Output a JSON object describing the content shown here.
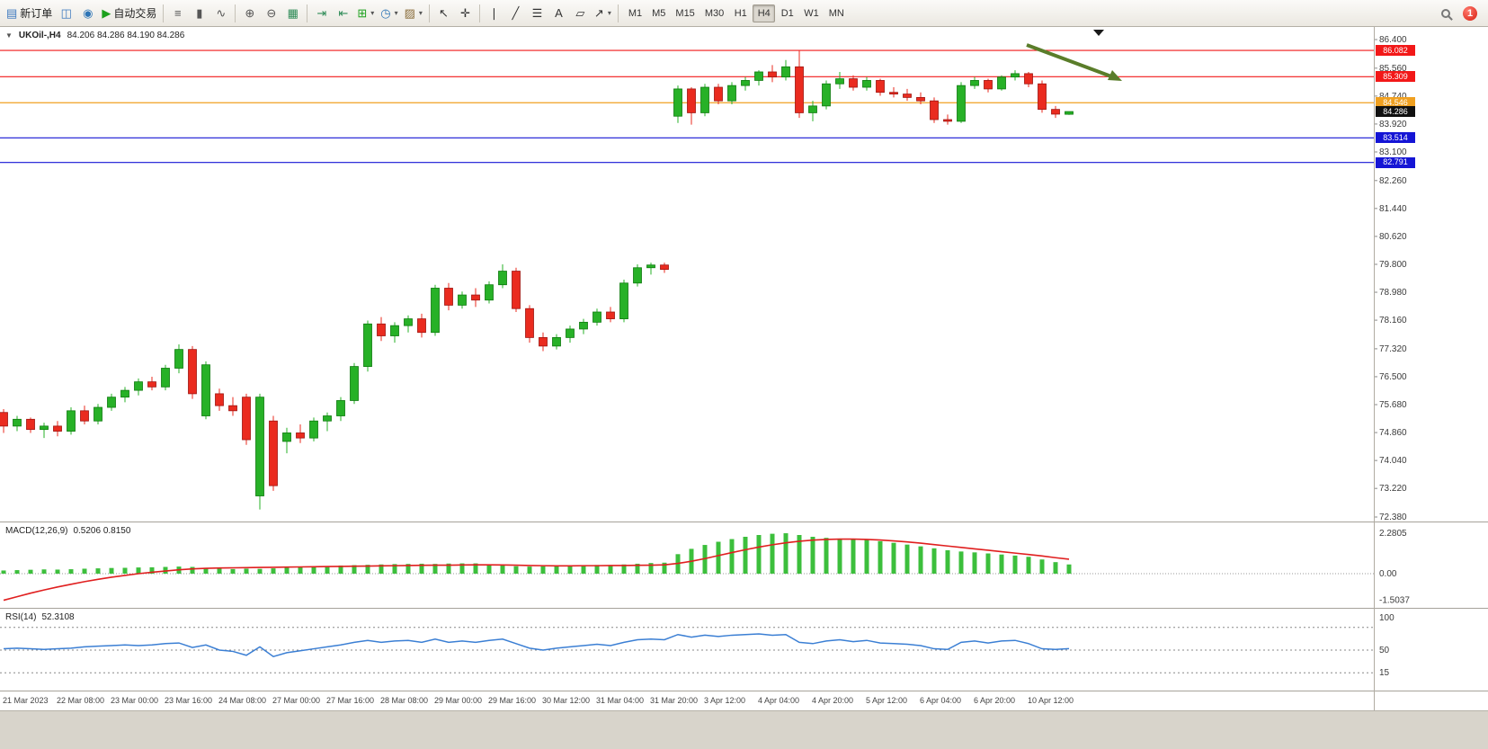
{
  "toolbar": {
    "badge": "1",
    "dropdown_icon": "▾",
    "items": [
      {
        "name": "new-order",
        "icon": "▤",
        "icon_color": "#3c78be",
        "label": "新订单"
      },
      {
        "name": "chart-window",
        "icon": "◫",
        "icon_color": "#3c78be"
      },
      {
        "name": "profiles",
        "icon": "◉",
        "icon_color": "#2e75b6"
      },
      {
        "name": "autotrading",
        "icon": "▶",
        "icon_color": "#1ca01c",
        "label": "自动交易"
      },
      {
        "type": "sep"
      },
      {
        "name": "bar-chart-type",
        "icon": "≡",
        "icon_color": "#555555"
      },
      {
        "name": "candlestick-type",
        "icon": "▮",
        "icon_color": "#555555"
      },
      {
        "name": "line-chart-type",
        "icon": "∿",
        "icon_color": "#555555"
      },
      {
        "type": "sep"
      },
      {
        "name": "zoom-in",
        "icon": "⊕",
        "icon_color": "#555555"
      },
      {
        "name": "zoom-out",
        "icon": "⊖",
        "icon_color": "#555555"
      },
      {
        "name": "tile-windows",
        "icon": "▦",
        "icon_color": "#2e8b57"
      },
      {
        "type": "sep"
      },
      {
        "name": "auto-scroll",
        "icon": "⇥",
        "icon_color": "#2e8b57"
      },
      {
        "name": "chart-shift",
        "icon": "⇤",
        "icon_color": "#2e8b57"
      },
      {
        "name": "indicators",
        "icon": "⊞",
        "icon_color": "#1ca01c",
        "dropdown": true
      },
      {
        "name": "periods",
        "icon": "◷",
        "icon_color": "#2e75b6",
        "dropdown": true
      },
      {
        "name": "templates",
        "icon": "▨",
        "icon_color": "#8a6d3b",
        "dropdown": true
      },
      {
        "type": "sep"
      },
      {
        "name": "cursor",
        "icon": "↖",
        "icon_color": "#333333"
      },
      {
        "name": "crosshair",
        "icon": "✛",
        "icon_color": "#333333"
      },
      {
        "type": "sep"
      },
      {
        "name": "vertical-line",
        "icon": "❘",
        "icon_color": "#333333"
      },
      {
        "name": "trendline",
        "icon": "╱",
        "icon_color": "#333333"
      },
      {
        "name": "fibonacci",
        "icon": "☰",
        "icon_color": "#333333"
      },
      {
        "name": "text-label",
        "icon": "A",
        "icon_color": "#333333"
      },
      {
        "name": "shapes",
        "icon": "▱",
        "icon_color": "#333333"
      },
      {
        "name": "arrows",
        "icon": "↗",
        "icon_color": "#333333",
        "dropdown": true
      },
      {
        "type": "sep"
      }
    ],
    "timeframes": {
      "items": [
        "M1",
        "M5",
        "M15",
        "M30",
        "H1",
        "H4",
        "D1",
        "W1",
        "MN"
      ],
      "active": "H4"
    }
  },
  "chart": {
    "collapse_icon": "▼",
    "symbol_label": "UKOil-,H4",
    "ohlc_label": "84.206 84.286 84.190 84.286",
    "colors": {
      "up": "#27b127",
      "up_border": "#0e7a0e",
      "down": "#ea2b1f",
      "down_border": "#9e1410",
      "macd_bar": "#3cbf3c",
      "macd_signal": "#e01f1f",
      "rsi_line": "#3b7fd4"
    },
    "price_axis": {
      "labels": [
        "86.400",
        "85.560",
        "84.740",
        "83.920",
        "83.100",
        "82.260",
        "81.440",
        "80.620",
        "79.800",
        "78.980",
        "78.160",
        "77.320",
        "76.500",
        "75.680",
        "74.860",
        "74.040",
        "73.220",
        "72.380"
      ]
    },
    "hlines": [
      {
        "value": 86.082,
        "color": "#f21818"
      },
      {
        "value": 85.309,
        "color": "#f21818"
      },
      {
        "value": 84.546,
        "color": "#f0a020"
      },
      {
        "value": 83.514,
        "color": "#1515d5"
      },
      {
        "value": 82.791,
        "color": "#1515d5"
      }
    ],
    "price_tags": [
      {
        "text": "86.082",
        "value": 86.082,
        "color": "#f21818"
      },
      {
        "text": "85.309",
        "value": 85.309,
        "color": "#f21818"
      },
      {
        "text": "84.546",
        "value": 84.546,
        "color": "#f0a020"
      },
      {
        "text": "84.286",
        "value": 84.286,
        "color": "#101010"
      },
      {
        "text": "83.514",
        "value": 83.514,
        "color": "#1515d5"
      },
      {
        "text": "82.791",
        "value": 82.791,
        "color": "#1515d5"
      }
    ],
    "arrow": {
      "color": "#5a7d2a"
    },
    "time_axis": [
      "21 Mar 2023",
      "22 Mar 08:00",
      "23 Mar 00:00",
      "23 Mar 16:00",
      "24 Mar 08:00",
      "27 Mar 00:00",
      "27 Mar 16:00",
      "28 Mar 08:00",
      "29 Mar 00:00",
      "29 Mar 16:00",
      "30 Mar 12:00",
      "31 Mar 04:00",
      "31 Mar 20:00",
      "3 Apr 12:00",
      "4 Apr 04:00",
      "4 Apr 20:00",
      "5 Apr 12:00",
      "6 Apr 04:00",
      "6 Apr 20:00",
      "10 Apr 12:00"
    ]
  },
  "chart_data": [
    {
      "type": "candlestick",
      "symbol": "UKOil-",
      "timeframe": "H4",
      "ohlc_current": {
        "open": 84.206,
        "high": 84.286,
        "low": 84.19,
        "close": 84.286
      },
      "ylim": [
        72.38,
        86.4
      ],
      "candles": [
        [
          75.45,
          75.55,
          74.85,
          75.05
        ],
        [
          75.05,
          75.35,
          74.9,
          75.25
        ],
        [
          75.25,
          75.3,
          74.85,
          74.95
        ],
        [
          74.95,
          75.15,
          74.7,
          75.05
        ],
        [
          75.05,
          75.2,
          74.75,
          74.9
        ],
        [
          74.9,
          75.6,
          74.8,
          75.5
        ],
        [
          75.5,
          75.65,
          75.1,
          75.2
        ],
        [
          75.2,
          75.7,
          75.1,
          75.6
        ],
        [
          75.6,
          76.0,
          75.5,
          75.9
        ],
        [
          75.9,
          76.2,
          75.75,
          76.1
        ],
        [
          76.1,
          76.45,
          75.95,
          76.35
        ],
        [
          76.35,
          76.5,
          76.1,
          76.2
        ],
        [
          76.2,
          76.85,
          76.1,
          76.75
        ],
        [
          76.75,
          77.45,
          76.6,
          77.3
        ],
        [
          77.3,
          77.4,
          75.85,
          76.0
        ],
        [
          75.35,
          76.95,
          75.25,
          76.85
        ],
        [
          76.0,
          76.15,
          75.5,
          75.65
        ],
        [
          75.65,
          75.9,
          75.35,
          75.5
        ],
        [
          75.9,
          76.0,
          74.5,
          74.65
        ],
        [
          73.0,
          76.0,
          72.6,
          75.9
        ],
        [
          75.2,
          75.35,
          73.15,
          73.3
        ],
        [
          74.6,
          75.0,
          74.25,
          74.85
        ],
        [
          74.85,
          75.1,
          74.55,
          74.7
        ],
        [
          74.7,
          75.3,
          74.6,
          75.2
        ],
        [
          75.2,
          75.45,
          74.9,
          75.35
        ],
        [
          75.35,
          75.9,
          75.2,
          75.8
        ],
        [
          75.8,
          76.9,
          75.7,
          76.8
        ],
        [
          76.8,
          78.15,
          76.65,
          78.05
        ],
        [
          78.05,
          78.25,
          77.55,
          77.7
        ],
        [
          77.7,
          78.1,
          77.5,
          78.0
        ],
        [
          78.0,
          78.3,
          77.8,
          78.2
        ],
        [
          78.2,
          78.35,
          77.65,
          77.8
        ],
        [
          77.8,
          79.2,
          77.7,
          79.1
        ],
        [
          79.1,
          79.25,
          78.45,
          78.6
        ],
        [
          78.6,
          79.0,
          78.5,
          78.9
        ],
        [
          78.9,
          79.1,
          78.55,
          78.75
        ],
        [
          78.75,
          79.3,
          78.65,
          79.2
        ],
        [
          79.2,
          79.8,
          79.1,
          79.6
        ],
        [
          79.6,
          79.7,
          78.4,
          78.5
        ],
        [
          78.5,
          78.6,
          77.5,
          77.65
        ],
        [
          77.65,
          77.8,
          77.25,
          77.4
        ],
        [
          77.4,
          77.75,
          77.3,
          77.65
        ],
        [
          77.65,
          78.0,
          77.5,
          77.9
        ],
        [
          77.9,
          78.2,
          77.75,
          78.1
        ],
        [
          78.1,
          78.5,
          78.0,
          78.4
        ],
        [
          78.4,
          78.55,
          78.1,
          78.2
        ],
        [
          78.2,
          79.35,
          78.1,
          79.25
        ],
        [
          79.25,
          79.8,
          79.15,
          79.7
        ],
        [
          79.7,
          79.85,
          79.5,
          79.78
        ],
        [
          79.78,
          79.85,
          79.55,
          79.65
        ],
        [
          84.15,
          85.05,
          83.95,
          84.95
        ],
        [
          84.95,
          85.0,
          83.9,
          84.25
        ],
        [
          84.25,
          85.1,
          84.15,
          85.0
        ],
        [
          85.0,
          85.1,
          84.5,
          84.6
        ],
        [
          84.6,
          85.15,
          84.5,
          85.05
        ],
        [
          85.05,
          85.3,
          84.9,
          85.2
        ],
        [
          85.2,
          85.5,
          85.05,
          85.45
        ],
        [
          85.45,
          85.65,
          85.15,
          85.3
        ],
        [
          85.3,
          85.8,
          85.2,
          85.6
        ],
        [
          85.6,
          86.08,
          84.1,
          84.25
        ],
        [
          84.25,
          84.6,
          84.0,
          84.45
        ],
        [
          84.45,
          85.2,
          84.35,
          85.1
        ],
        [
          85.1,
          85.45,
          84.95,
          85.25
        ],
        [
          85.25,
          85.35,
          84.9,
          85.0
        ],
        [
          85.0,
          85.3,
          84.9,
          85.2
        ],
        [
          85.2,
          85.25,
          84.75,
          84.85
        ],
        [
          84.85,
          85.0,
          84.7,
          84.8
        ],
        [
          84.8,
          84.95,
          84.6,
          84.7
        ],
        [
          84.7,
          84.85,
          84.5,
          84.6
        ],
        [
          84.6,
          84.7,
          83.95,
          84.05
        ],
        [
          84.05,
          84.2,
          83.9,
          84.0
        ],
        [
          84.0,
          85.15,
          83.95,
          85.05
        ],
        [
          85.05,
          85.3,
          84.95,
          85.2
        ],
        [
          85.2,
          85.25,
          84.85,
          84.95
        ],
        [
          84.95,
          85.35,
          84.9,
          85.3
        ],
        [
          85.3,
          85.5,
          85.2,
          85.4
        ],
        [
          85.4,
          85.45,
          85.0,
          85.1
        ],
        [
          85.1,
          85.2,
          84.25,
          84.35
        ],
        [
          84.35,
          84.45,
          84.1,
          84.21
        ],
        [
          84.206,
          84.286,
          84.19,
          84.286
        ]
      ]
    },
    {
      "type": "bar",
      "label": "MACD(12,26,9)",
      "values_text": "0.5206 0.8150",
      "ylim": [
        -1.5037,
        2.2805
      ],
      "axis": [
        {
          "text": "2.2805",
          "value": 2.2805
        },
        {
          "text": "0.00",
          "value": 0
        },
        {
          "text": "-1.5037",
          "value": -1.5037
        }
      ],
      "histogram": [
        0.18,
        0.2,
        0.22,
        0.24,
        0.23,
        0.25,
        0.28,
        0.3,
        0.32,
        0.33,
        0.35,
        0.36,
        0.38,
        0.4,
        0.38,
        0.33,
        0.28,
        0.26,
        0.28,
        0.27,
        0.3,
        0.33,
        0.36,
        0.4,
        0.43,
        0.46,
        0.48,
        0.5,
        0.52,
        0.54,
        0.55,
        0.56,
        0.55,
        0.57,
        0.58,
        0.58,
        0.52,
        0.46,
        0.42,
        0.4,
        0.42,
        0.45,
        0.47,
        0.48,
        0.49,
        0.48,
        0.52,
        0.56,
        0.6,
        0.62,
        1.1,
        1.4,
        1.62,
        1.8,
        1.95,
        2.08,
        2.18,
        2.25,
        2.28,
        2.18,
        2.08,
        2.02,
        1.98,
        1.95,
        1.9,
        1.83,
        1.74,
        1.64,
        1.54,
        1.43,
        1.32,
        1.25,
        1.2,
        1.14,
        1.08,
        1.02,
        0.95,
        0.8,
        0.65,
        0.52
      ],
      "signal": [
        -1.5,
        -1.3,
        -1.1,
        -0.92,
        -0.75,
        -0.6,
        -0.45,
        -0.32,
        -0.2,
        -0.1,
        0.0,
        0.08,
        0.15,
        0.22,
        0.27,
        0.3,
        0.32,
        0.33,
        0.34,
        0.35,
        0.36,
        0.37,
        0.38,
        0.39,
        0.4,
        0.41,
        0.42,
        0.43,
        0.44,
        0.45,
        0.46,
        0.47,
        0.48,
        0.48,
        0.49,
        0.5,
        0.5,
        0.49,
        0.48,
        0.46,
        0.45,
        0.44,
        0.44,
        0.45,
        0.45,
        0.46,
        0.46,
        0.47,
        0.48,
        0.5,
        0.58,
        0.7,
        0.85,
        1.02,
        1.19,
        1.35,
        1.5,
        1.63,
        1.74,
        1.83,
        1.89,
        1.93,
        1.95,
        1.95,
        1.93,
        1.9,
        1.85,
        1.79,
        1.72,
        1.64,
        1.56,
        1.48,
        1.4,
        1.32,
        1.24,
        1.16,
        1.08,
        1.0,
        0.9,
        0.815
      ]
    },
    {
      "type": "line",
      "label": "RSI(14)",
      "values_text": "52.3108",
      "ylim": [
        0,
        100
      ],
      "levels": [
        85,
        50,
        15
      ],
      "axis": [
        {
          "text": "100",
          "value": 100
        },
        {
          "text": "50",
          "value": 50
        },
        {
          "text": "15",
          "value": 15
        }
      ],
      "values": [
        52,
        53,
        52,
        51,
        52,
        53,
        55,
        56,
        57,
        58,
        57,
        58,
        60,
        61,
        54,
        58,
        50,
        48,
        42,
        55,
        40,
        46,
        49,
        52,
        55,
        58,
        62,
        65,
        62,
        64,
        65,
        62,
        67,
        62,
        64,
        62,
        65,
        67,
        60,
        53,
        50,
        53,
        55,
        57,
        59,
        57,
        62,
        66,
        67,
        66,
        74,
        70,
        73,
        71,
        73,
        74,
        75,
        73,
        74,
        62,
        60,
        64,
        66,
        63,
        65,
        61,
        60,
        59,
        57,
        52,
        51,
        62,
        64,
        61,
        64,
        65,
        60,
        52,
        51,
        52.31
      ]
    }
  ]
}
